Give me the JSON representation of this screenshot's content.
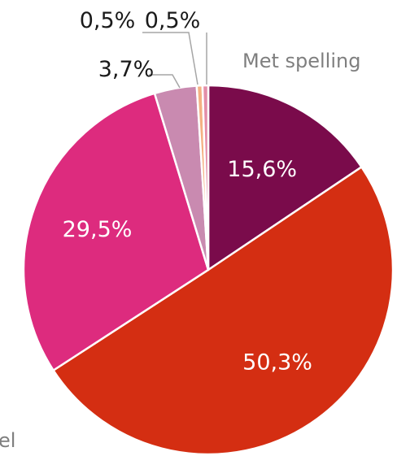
{
  "chart_data": {
    "type": "pie",
    "slices": [
      {
        "label": "15,6%",
        "value": 15.6,
        "color": "#7a0b4b"
      },
      {
        "label": "50,3%",
        "value": 50.3,
        "color": "#d42e12"
      },
      {
        "label": "29,5%",
        "value": 29.5,
        "color": "#dd2b7e"
      },
      {
        "label": "3,7%",
        "value": 3.7,
        "color": "#c98ab0"
      },
      {
        "label": "0,5%",
        "value": 0.5,
        "color": "#f4b183"
      },
      {
        "label": "0,5%",
        "value": 0.5,
        "color": "#e38da8"
      }
    ],
    "legend": [
      {
        "label": "Met spelling",
        "placement": "top-right"
      },
      {
        "label": "el",
        "placement": "bottom-left (cut off)"
      }
    ]
  }
}
